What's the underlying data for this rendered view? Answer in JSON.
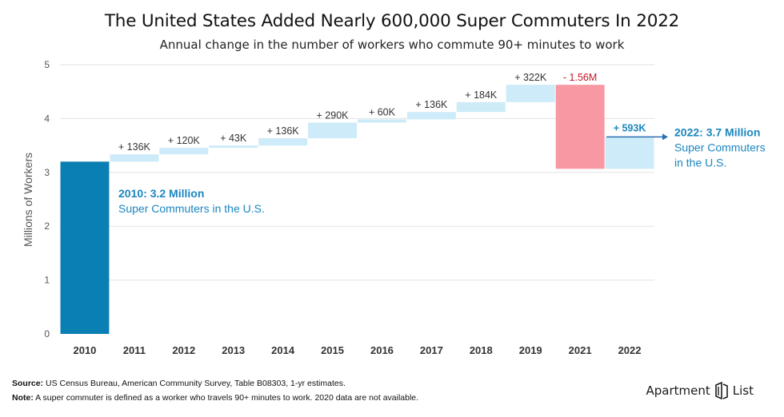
{
  "title": "The United States Added Nearly 600,000 Super Commuters In 2022",
  "subtitle": "Annual change in the number of workers who commute 90+ minutes to work",
  "chart_data": {
    "type": "waterfall",
    "ylabel": "Millions of Workers",
    "ylim": [
      0,
      5
    ],
    "yticks": [
      0,
      1,
      2,
      3,
      4,
      5
    ],
    "grid": true,
    "categories": [
      "2010",
      "2011",
      "2012",
      "2013",
      "2014",
      "2015",
      "2016",
      "2017",
      "2018",
      "2019",
      "2021",
      "2022"
    ],
    "base": {
      "year": "2010",
      "value": 3.2
    },
    "changes": [
      {
        "year": "2011",
        "delta": 0.136,
        "label": "+ 136K"
      },
      {
        "year": "2012",
        "delta": 0.12,
        "label": "+ 120K"
      },
      {
        "year": "2013",
        "delta": 0.043,
        "label": "+ 43K"
      },
      {
        "year": "2014",
        "delta": 0.136,
        "label": "+ 136K"
      },
      {
        "year": "2015",
        "delta": 0.29,
        "label": "+ 290K"
      },
      {
        "year": "2016",
        "delta": 0.06,
        "label": "+ 60K"
      },
      {
        "year": "2017",
        "delta": 0.136,
        "label": "+ 136K"
      },
      {
        "year": "2018",
        "delta": 0.184,
        "label": "+ 184K"
      },
      {
        "year": "2019",
        "delta": 0.322,
        "label": "+ 322K"
      },
      {
        "year": "2021",
        "delta": -1.56,
        "label": "- 1.56M"
      },
      {
        "year": "2022",
        "delta": 0.593,
        "label": "+ 593K"
      }
    ],
    "annotations": {
      "start_title": "2010: 3.2 Million",
      "start_sub": "Super Commuters in the U.S.",
      "end_title": "2022: 3.7 Million",
      "end_sub1": "Super Commuters",
      "end_sub2": "in the U.S."
    },
    "colors": {
      "base": "#0a7fb3",
      "increase": "#cdebf8",
      "decrease": "#f898a2",
      "decrease_label": "#c0182a",
      "highlight_text": "#1c86bf",
      "axis_text": "#555555",
      "grid": "#e2e2e2"
    }
  },
  "footer": {
    "source_label": "Source:",
    "source_text": " US Census Bureau, American Community Survey, Table B08303, 1-yr estimates.",
    "note_label": "Note:",
    "note_text": " A super commuter is defined as a worker who travels 90+ minutes to work. 2020 data are not available."
  },
  "brand": {
    "left": "Apartment",
    "right": "List"
  }
}
